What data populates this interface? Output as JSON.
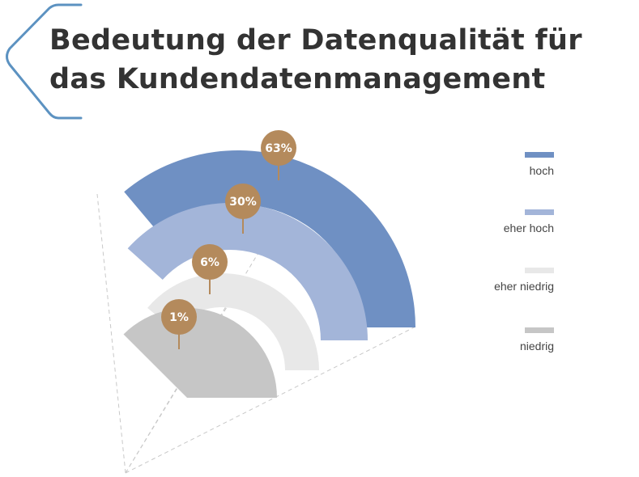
{
  "title": {
    "line1": "Bedeutung der Datenqualität für",
    "line2": "das Kundendatenmanagement"
  },
  "colors": {
    "title": "#333333",
    "accent_frame": "#3f7fb6",
    "pin": "#b48a5c",
    "guide": "#c8c8c8"
  },
  "chart_data": {
    "type": "pie",
    "title": "Bedeutung der Datenqualität für das Kundendatenmanagement",
    "unit": "%",
    "categories": [
      "hoch",
      "eher hoch",
      "eher niedrig",
      "niedrig"
    ],
    "values": [
      63,
      30,
      6,
      1
    ],
    "labels": [
      "63%",
      "30%",
      "6%",
      "1%"
    ],
    "colors": [
      "#6f90c3",
      "#a3b5d9",
      "#e8e8e8",
      "#c6c6c6"
    ],
    "legend_position": "right",
    "grid": false
  }
}
